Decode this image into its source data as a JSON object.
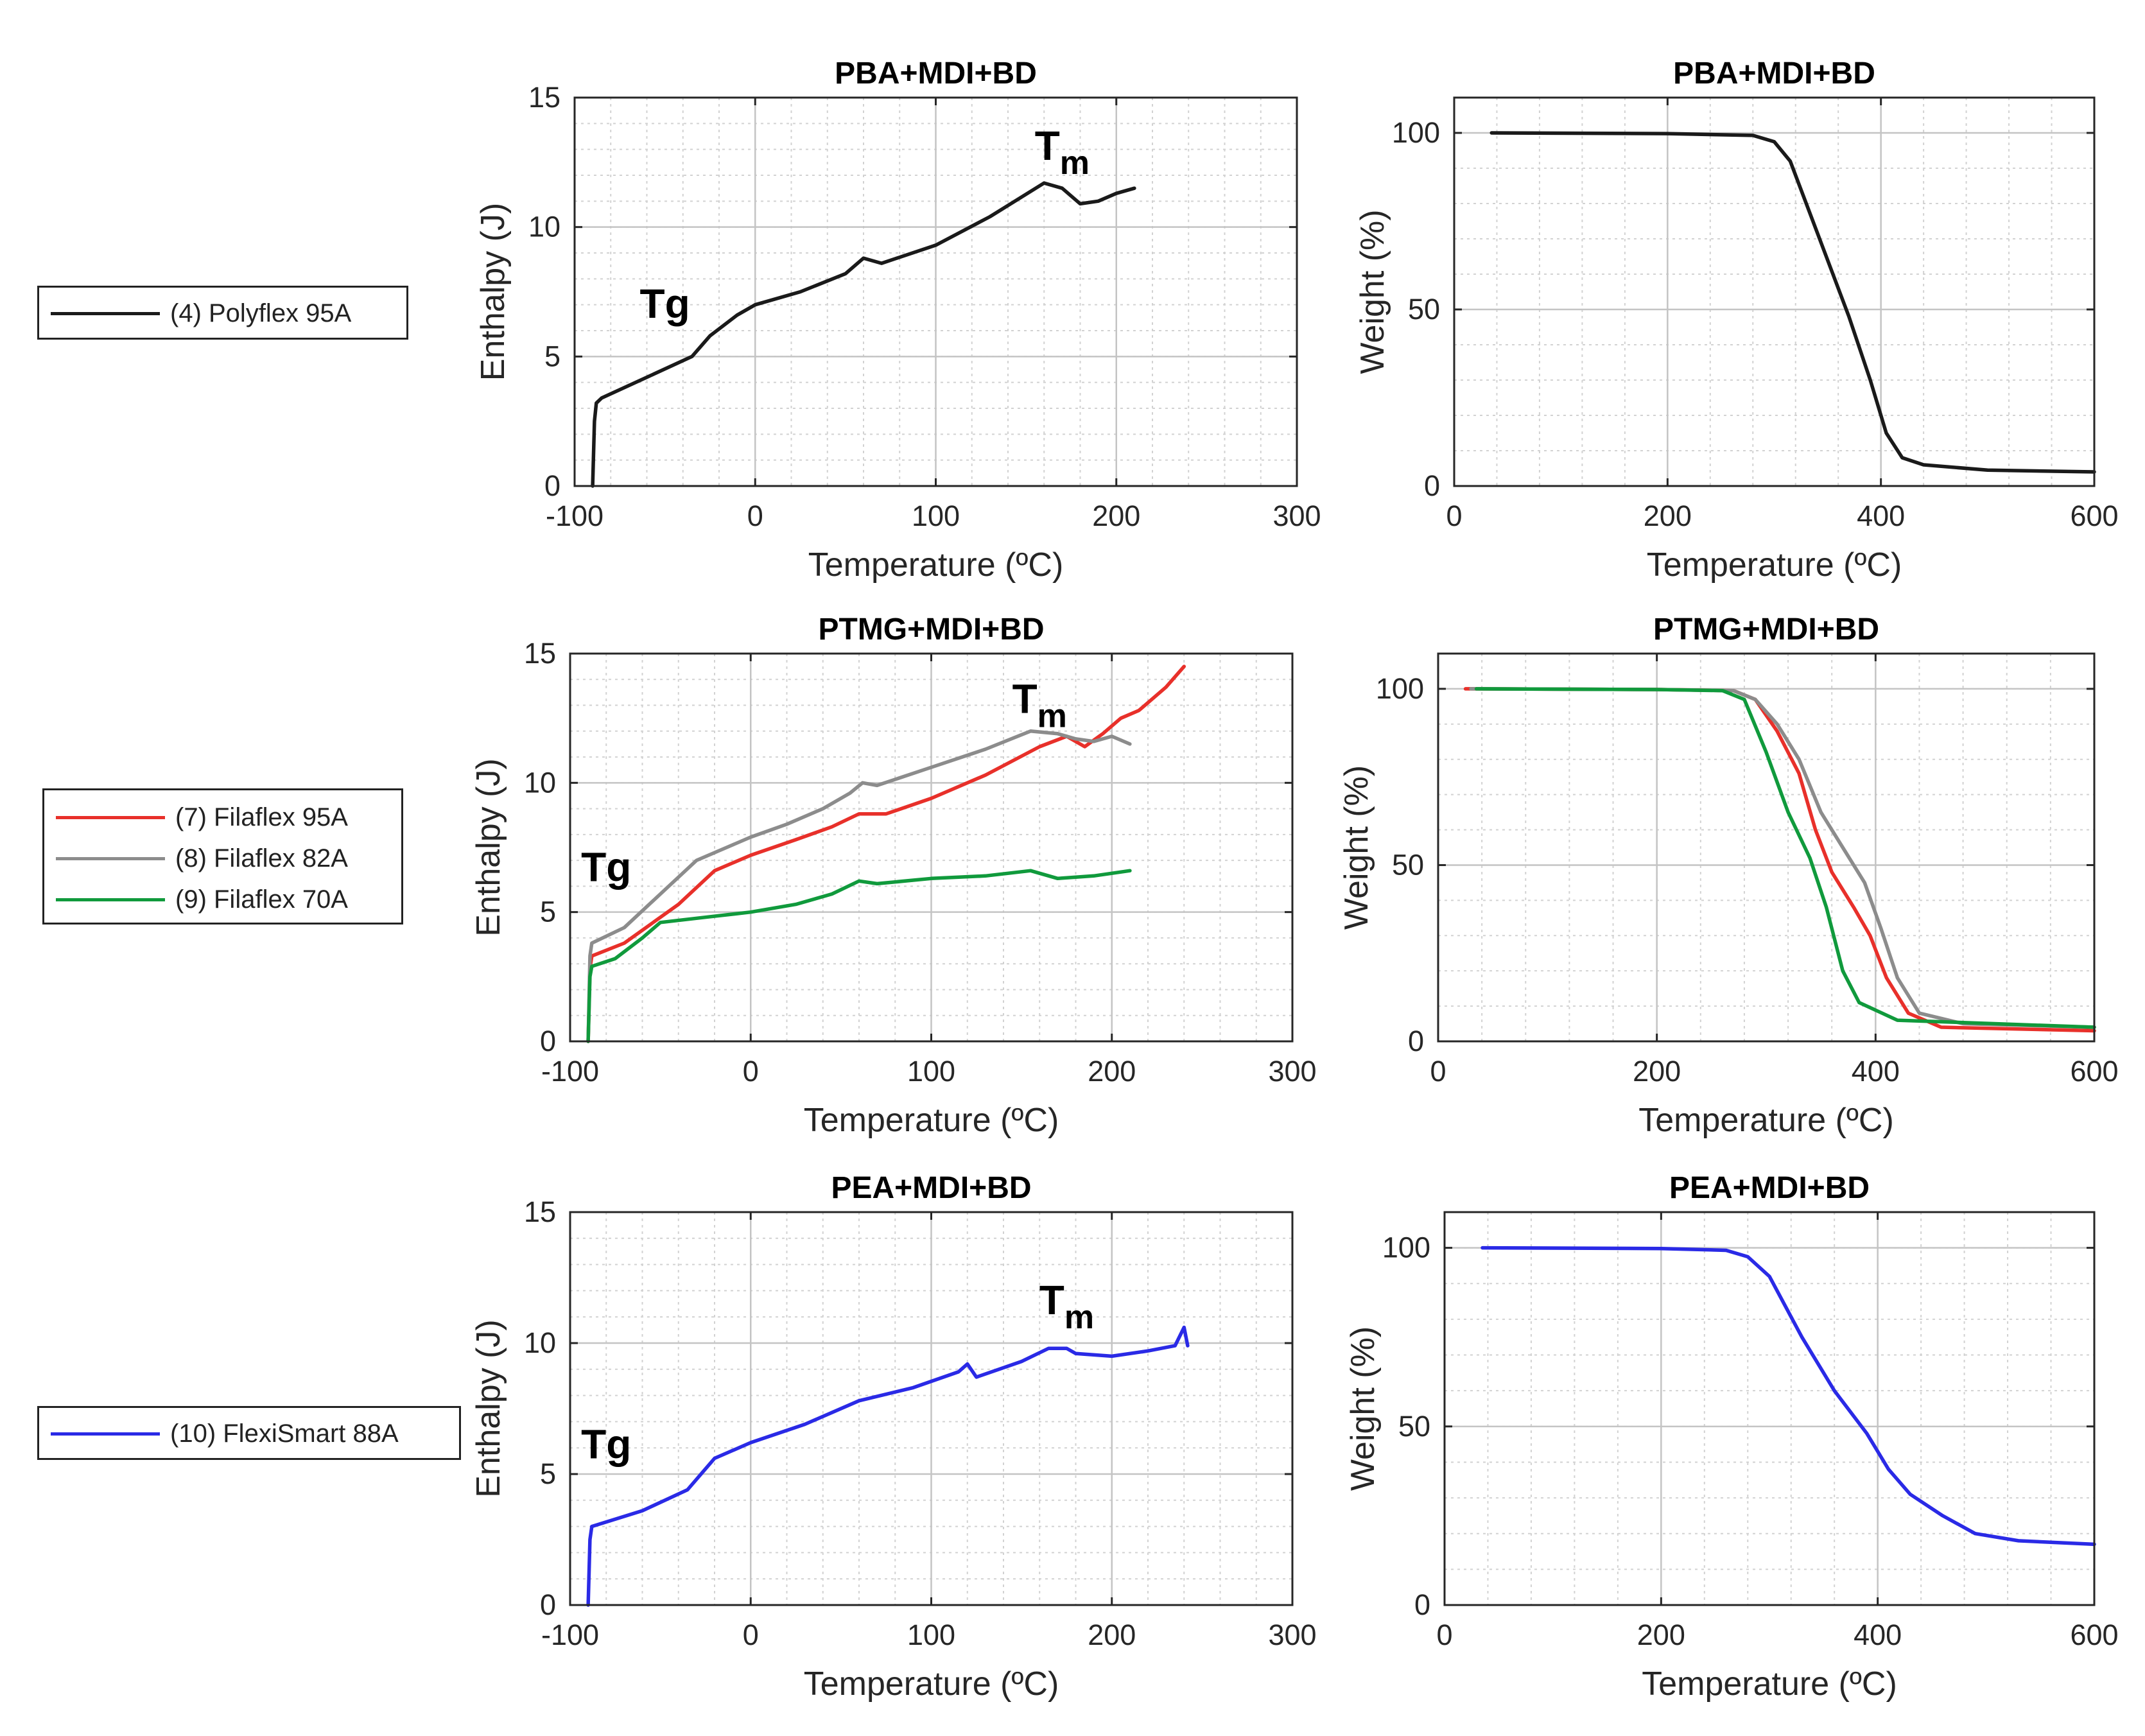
{
  "chart_data": [
    {
      "type": "line",
      "title": "PBA+MDI+BD",
      "xlabel": "Temperature (ºC)",
      "ylabel": "Enthalpy (J)",
      "xlim": [
        -100,
        300
      ],
      "ylim": [
        0,
        15
      ],
      "xticks": [
        -100,
        0,
        100,
        200,
        300
      ],
      "yticks": [
        0,
        5,
        10,
        15
      ],
      "grid": true,
      "annotations": [
        {
          "text": "Tg",
          "x": -50,
          "y": 6.5
        },
        {
          "text": "T",
          "sub": "m",
          "x": 170,
          "y": 12.6
        }
      ],
      "series": [
        {
          "name": "(4) Polyflex 95A",
          "color": "#1a1a1a",
          "x": [
            -90,
            -89,
            -88,
            -85,
            -60,
            -35,
            -25,
            -10,
            0,
            25,
            50,
            60,
            70,
            100,
            130,
            160,
            170,
            180,
            190,
            200,
            210
          ],
          "y": [
            0,
            2.5,
            3.2,
            3.4,
            4.2,
            5.0,
            5.8,
            6.6,
            7.0,
            7.5,
            8.2,
            8.8,
            8.6,
            9.3,
            10.4,
            11.7,
            11.5,
            10.9,
            11.0,
            11.3,
            11.5
          ]
        }
      ]
    },
    {
      "type": "line",
      "title": "PBA+MDI+BD",
      "xlabel": "Temperature (ºC)",
      "ylabel": "Weight (%)",
      "xlim": [
        0,
        600
      ],
      "ylim": [
        0,
        110
      ],
      "xticks": [
        0,
        200,
        400,
        600
      ],
      "yticks": [
        0,
        50,
        100
      ],
      "grid": true,
      "series": [
        {
          "name": "(4) Polyflex 95A",
          "color": "#1a1a1a",
          "x": [
            35,
            200,
            280,
            300,
            315,
            340,
            370,
            390,
            405,
            420,
            440,
            500,
            600
          ],
          "y": [
            100,
            99.8,
            99.3,
            97.5,
            92,
            72,
            48,
            30,
            15,
            8,
            6,
            4.5,
            4
          ]
        }
      ]
    },
    {
      "type": "line",
      "title": "PTMG+MDI+BD",
      "xlabel": "Temperature (ºC)",
      "ylabel": "Enthalpy (J)",
      "xlim": [
        -100,
        300
      ],
      "ylim": [
        0,
        15
      ],
      "xticks": [
        -100,
        0,
        100,
        200,
        300
      ],
      "yticks": [
        0,
        5,
        10,
        15
      ],
      "grid": true,
      "annotations": [
        {
          "text": "Tg",
          "x": -80,
          "y": 6.2
        },
        {
          "text": "T",
          "sub": "m",
          "x": 160,
          "y": 12.7
        }
      ],
      "series": [
        {
          "name": "(7) Filaflex 95A",
          "color": "#e8302a",
          "x": [
            -90,
            -89,
            -88,
            -70,
            -40,
            -20,
            0,
            25,
            45,
            60,
            75,
            100,
            130,
            160,
            175,
            185,
            195,
            205,
            215,
            230,
            240
          ],
          "y": [
            0,
            2.8,
            3.3,
            3.8,
            5.3,
            6.6,
            7.2,
            7.8,
            8.3,
            8.8,
            8.8,
            9.4,
            10.3,
            11.4,
            11.8,
            11.4,
            11.9,
            12.5,
            12.8,
            13.7,
            14.5
          ]
        },
        {
          "name": "(8) Filaflex 82A",
          "color": "#8c8c8c",
          "x": [
            -90,
            -89,
            -88,
            -70,
            -50,
            -30,
            -10,
            0,
            20,
            40,
            55,
            62,
            70,
            100,
            130,
            155,
            170,
            180,
            190,
            200,
            210
          ],
          "y": [
            0,
            3.3,
            3.8,
            4.4,
            5.7,
            7.0,
            7.6,
            7.9,
            8.4,
            9.0,
            9.6,
            10.0,
            9.9,
            10.6,
            11.3,
            12.0,
            11.9,
            11.7,
            11.6,
            11.8,
            11.5
          ]
        },
        {
          "name": "(9) Filaflex 70A",
          "color": "#109a3c",
          "x": [
            -90,
            -89,
            -88,
            -75,
            -60,
            -50,
            -25,
            0,
            25,
            45,
            60,
            70,
            100,
            130,
            155,
            170,
            190,
            210
          ],
          "y": [
            0,
            2.5,
            2.9,
            3.2,
            4.0,
            4.6,
            4.8,
            5.0,
            5.3,
            5.7,
            6.2,
            6.1,
            6.3,
            6.4,
            6.6,
            6.3,
            6.4,
            6.6
          ]
        }
      ]
    },
    {
      "type": "line",
      "title": "PTMG+MDI+BD",
      "xlabel": "Temperature (ºC)",
      "ylabel": "Weight (%)",
      "xlim": [
        0,
        600
      ],
      "ylim": [
        0,
        110
      ],
      "xticks": [
        0,
        200,
        400,
        600
      ],
      "yticks": [
        0,
        50,
        100
      ],
      "grid": true,
      "series": [
        {
          "name": "(7) Filaflex 95A",
          "color": "#e8302a",
          "x": [
            25,
            200,
            270,
            290,
            310,
            330,
            345,
            360,
            380,
            395,
            410,
            430,
            460,
            600
          ],
          "y": [
            100,
            99.8,
            99.5,
            97,
            88,
            76,
            60,
            48,
            38,
            30,
            18,
            8,
            4,
            3
          ]
        },
        {
          "name": "(8) Filaflex 82A",
          "color": "#8c8c8c",
          "x": [
            30,
            200,
            270,
            290,
            310,
            330,
            350,
            370,
            390,
            405,
            420,
            440,
            480,
            600
          ],
          "y": [
            100,
            99.8,
            99.5,
            97,
            90,
            80,
            65,
            55,
            45,
            32,
            18,
            8,
            5,
            4
          ]
        },
        {
          "name": "(9) Filaflex 70A",
          "color": "#109a3c",
          "x": [
            35,
            200,
            260,
            280,
            300,
            320,
            340,
            355,
            370,
            385,
            420,
            600
          ],
          "y": [
            100,
            99.8,
            99.5,
            97,
            82,
            65,
            52,
            38,
            20,
            11,
            6,
            4
          ]
        }
      ]
    },
    {
      "type": "line",
      "title": "PEA+MDI+BD",
      "xlabel": "Temperature (ºC)",
      "ylabel": "Enthalpy (J)",
      "xlim": [
        -100,
        300
      ],
      "ylim": [
        0,
        15
      ],
      "xticks": [
        -100,
        0,
        100,
        200,
        300
      ],
      "yticks": [
        0,
        5,
        10,
        15
      ],
      "grid": true,
      "annotations": [
        {
          "text": "Tg",
          "x": -80,
          "y": 5.6
        },
        {
          "text": "T",
          "sub": "m",
          "x": 175,
          "y": 11.1
        }
      ],
      "series": [
        {
          "name": "(10) FlexiSmart 88A",
          "color": "#2a2ae6",
          "x": [
            -90,
            -89,
            -88,
            -60,
            -35,
            -20,
            0,
            30,
            60,
            90,
            115,
            120,
            125,
            150,
            165,
            175,
            180,
            200,
            220,
            235,
            240,
            242
          ],
          "y": [
            0,
            2.5,
            3.0,
            3.6,
            4.4,
            5.6,
            6.2,
            6.9,
            7.8,
            8.3,
            8.9,
            9.2,
            8.7,
            9.3,
            9.8,
            9.8,
            9.6,
            9.5,
            9.7,
            9.9,
            10.6,
            9.9
          ]
        }
      ]
    },
    {
      "type": "line",
      "title": "PEA+MDI+BD",
      "xlabel": "Temperature (ºC)",
      "ylabel": "Weight (%)",
      "xlim": [
        0,
        600
      ],
      "ylim": [
        0,
        110
      ],
      "xticks": [
        0,
        200,
        400,
        600
      ],
      "yticks": [
        0,
        50,
        100
      ],
      "grid": true,
      "series": [
        {
          "name": "(10) FlexiSmart 88A",
          "color": "#2a2ae6",
          "x": [
            35,
            200,
            260,
            280,
            300,
            330,
            360,
            390,
            410,
            430,
            460,
            490,
            530,
            600
          ],
          "y": [
            100,
            99.8,
            99.3,
            97.5,
            92,
            75,
            60,
            48,
            38,
            31,
            25,
            20,
            18,
            17
          ]
        }
      ]
    }
  ],
  "legends": [
    {
      "items": [
        {
          "label": "(4) Polyflex 95A",
          "color": "#1a1a1a"
        }
      ]
    },
    {
      "items": [
        {
          "label": "(7) Filaflex 95A",
          "color": "#e8302a"
        },
        {
          "label": "(8) Filaflex 82A",
          "color": "#8c8c8c"
        },
        {
          "label": "(9) Filaflex 70A",
          "color": "#109a3c"
        }
      ]
    },
    {
      "items": [
        {
          "label": "(10) FlexiSmart 88A",
          "color": "#2a2ae6"
        }
      ]
    }
  ]
}
